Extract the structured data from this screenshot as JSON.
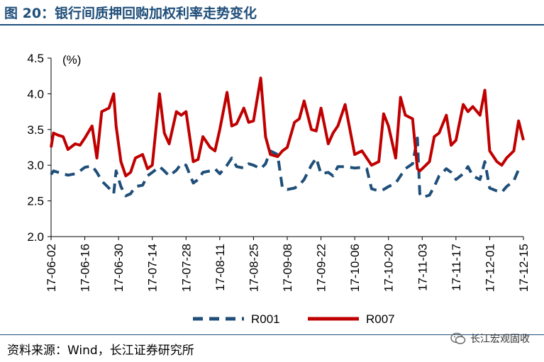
{
  "header": {
    "title": "图 20：银行间质押回购加权利率走势变化"
  },
  "footer": {
    "source": "资料来源：Wind，长江证券研究所",
    "watermark": "长江宏观固收"
  },
  "colors": {
    "R001": "#1f4e79",
    "R007": "#c00000",
    "title": "#1f4e79"
  },
  "chart_data": {
    "type": "line",
    "title": "",
    "unit_label": "(%)",
    "xlabel": "",
    "ylabel": "",
    "ylim": [
      2.0,
      4.5
    ],
    "yticks": [
      "2.0",
      "2.5",
      "3.0",
      "3.5",
      "4.0",
      "4.5"
    ],
    "xlim": [
      "2017-06-02",
      "2017-12-15"
    ],
    "xticks": [
      "17-06-02",
      "17-06-16",
      "17-06-30",
      "17-07-14",
      "17-07-28",
      "17-08-11",
      "17-08-25",
      "17-09-08",
      "17-09-22",
      "17-10-06",
      "17-10-20",
      "17-11-03",
      "17-11-17",
      "17-12-01",
      "17-12-15"
    ],
    "legend_position": "bottom",
    "grid": false,
    "series": [
      {
        "name": "R001",
        "style": "dashed",
        "x": [
          "2017-06-02",
          "2017-06-03",
          "2017-06-05",
          "2017-06-07",
          "2017-06-09",
          "2017-06-12",
          "2017-06-14",
          "2017-06-16",
          "2017-06-19",
          "2017-06-21",
          "2017-06-23",
          "2017-06-26",
          "2017-06-28",
          "2017-06-29",
          "2017-07-01",
          "2017-07-03",
          "2017-07-05",
          "2017-07-07",
          "2017-07-10",
          "2017-07-12",
          "2017-07-14",
          "2017-07-17",
          "2017-07-19",
          "2017-07-21",
          "2017-07-24",
          "2017-07-26",
          "2017-07-28",
          "2017-07-31",
          "2017-08-02",
          "2017-08-04",
          "2017-08-07",
          "2017-08-09",
          "2017-08-11",
          "2017-08-14",
          "2017-08-16",
          "2017-08-18",
          "2017-08-21",
          "2017-08-23",
          "2017-08-25",
          "2017-08-28",
          "2017-08-30",
          "2017-09-01",
          "2017-09-04",
          "2017-09-06",
          "2017-09-08",
          "2017-09-11",
          "2017-09-13",
          "2017-09-15",
          "2017-09-18",
          "2017-09-20",
          "2017-09-22",
          "2017-09-25",
          "2017-09-27",
          "2017-09-29",
          "2017-10-02",
          "2017-10-06",
          "2017-10-09",
          "2017-10-11",
          "2017-10-13",
          "2017-10-16",
          "2017-10-18",
          "2017-10-20",
          "2017-10-23",
          "2017-10-25",
          "2017-10-27",
          "2017-10-30",
          "2017-11-01",
          "2017-11-02",
          "2017-11-03",
          "2017-11-06",
          "2017-11-08",
          "2017-11-10",
          "2017-11-13",
          "2017-11-15",
          "2017-11-17",
          "2017-11-20",
          "2017-11-22",
          "2017-11-24",
          "2017-11-27",
          "2017-11-29",
          "2017-12-01",
          "2017-12-04",
          "2017-12-06",
          "2017-12-08",
          "2017-12-11",
          "2017-12-13",
          "2017-12-15"
        ],
        "values": [
          2.87,
          2.92,
          2.9,
          2.88,
          2.86,
          2.88,
          2.92,
          2.97,
          2.99,
          2.9,
          2.78,
          2.68,
          2.6,
          2.92,
          2.7,
          2.57,
          2.6,
          2.7,
          2.72,
          2.85,
          2.9,
          2.98,
          2.92,
          2.85,
          2.93,
          3.02,
          3.0,
          2.75,
          2.8,
          2.9,
          2.92,
          2.95,
          2.88,
          3.0,
          3.1,
          2.98,
          2.96,
          3.02,
          3.0,
          2.95,
          3.02,
          3.2,
          3.15,
          2.68,
          2.66,
          2.68,
          2.72,
          2.8,
          3.0,
          3.1,
          2.88,
          2.9,
          2.85,
          2.98,
          2.98,
          2.96,
          2.97,
          2.95,
          2.67,
          2.64,
          2.66,
          2.7,
          2.75,
          2.85,
          2.95,
          3.02,
          3.38,
          2.6,
          2.55,
          2.58,
          2.7,
          2.85,
          2.95,
          2.9,
          2.8,
          2.88,
          2.98,
          2.85,
          2.8,
          3.05,
          2.68,
          2.64,
          2.62,
          2.7,
          2.78,
          2.94,
          2.92
        ]
      },
      {
        "name": "R007",
        "style": "solid",
        "x": [
          "2017-06-02",
          "2017-06-03",
          "2017-06-05",
          "2017-06-07",
          "2017-06-09",
          "2017-06-12",
          "2017-06-14",
          "2017-06-16",
          "2017-06-19",
          "2017-06-21",
          "2017-06-23",
          "2017-06-26",
          "2017-06-28",
          "2017-06-29",
          "2017-07-01",
          "2017-07-03",
          "2017-07-05",
          "2017-07-07",
          "2017-07-10",
          "2017-07-12",
          "2017-07-14",
          "2017-07-17",
          "2017-07-19",
          "2017-07-21",
          "2017-07-24",
          "2017-07-26",
          "2017-07-28",
          "2017-07-31",
          "2017-08-02",
          "2017-08-04",
          "2017-08-07",
          "2017-08-09",
          "2017-08-11",
          "2017-08-14",
          "2017-08-16",
          "2017-08-18",
          "2017-08-21",
          "2017-08-23",
          "2017-08-25",
          "2017-08-28",
          "2017-08-30",
          "2017-09-01",
          "2017-09-04",
          "2017-09-06",
          "2017-09-08",
          "2017-09-11",
          "2017-09-13",
          "2017-09-15",
          "2017-09-18",
          "2017-09-20",
          "2017-09-22",
          "2017-09-25",
          "2017-09-27",
          "2017-09-29",
          "2017-10-02",
          "2017-10-06",
          "2017-10-09",
          "2017-10-11",
          "2017-10-13",
          "2017-10-16",
          "2017-10-18",
          "2017-10-20",
          "2017-10-23",
          "2017-10-25",
          "2017-10-27",
          "2017-10-30",
          "2017-11-01",
          "2017-11-02",
          "2017-11-03",
          "2017-11-06",
          "2017-11-08",
          "2017-11-10",
          "2017-11-13",
          "2017-11-15",
          "2017-11-17",
          "2017-11-20",
          "2017-11-22",
          "2017-11-24",
          "2017-11-27",
          "2017-11-29",
          "2017-12-01",
          "2017-12-04",
          "2017-12-06",
          "2017-12-08",
          "2017-12-11",
          "2017-12-13",
          "2017-12-15"
        ],
        "values": [
          3.25,
          3.45,
          3.42,
          3.4,
          3.22,
          3.3,
          3.28,
          3.38,
          3.55,
          3.1,
          3.75,
          3.8,
          4.0,
          3.55,
          3.05,
          2.85,
          2.9,
          3.1,
          3.15,
          2.95,
          3.0,
          4.0,
          3.45,
          3.3,
          3.75,
          3.7,
          3.75,
          3.05,
          3.08,
          3.4,
          3.25,
          3.2,
          3.5,
          4.02,
          3.55,
          3.58,
          3.8,
          3.6,
          3.62,
          4.22,
          3.4,
          3.15,
          3.12,
          3.2,
          3.25,
          3.6,
          3.65,
          3.9,
          3.5,
          3.48,
          3.8,
          3.3,
          3.45,
          3.55,
          3.85,
          3.15,
          3.2,
          3.1,
          3.0,
          3.05,
          3.72,
          3.55,
          3.1,
          3.95,
          3.7,
          3.65,
          2.95,
          2.92,
          2.95,
          3.05,
          3.4,
          3.45,
          3.7,
          3.28,
          3.35,
          3.85,
          3.75,
          3.82,
          3.7,
          4.05,
          3.2,
          3.05,
          3.0,
          3.1,
          3.2,
          3.62,
          3.35
        ]
      }
    ]
  }
}
